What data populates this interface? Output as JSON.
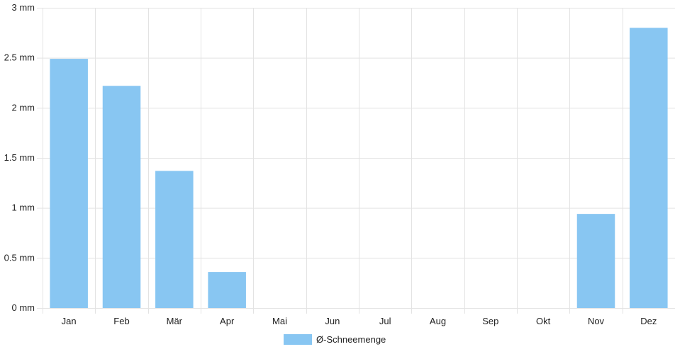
{
  "chart_data": {
    "type": "bar",
    "categories": [
      "Jan",
      "Feb",
      "Mär",
      "Apr",
      "Mai",
      "Jun",
      "Jul",
      "Aug",
      "Sep",
      "Okt",
      "Nov",
      "Dez"
    ],
    "series": [
      {
        "name": "Ø-Schneemenge",
        "values": [
          2.49,
          2.22,
          1.37,
          0.36,
          0,
          0,
          0,
          0,
          0,
          0,
          0.94,
          2.8
        ]
      }
    ],
    "ylim": [
      0,
      3
    ],
    "yticks": [
      0,
      0.5,
      1,
      1.5,
      2,
      2.5,
      3
    ],
    "yunit": "mm",
    "grid": true,
    "legend_position": "bottom",
    "bar_color": "#88c6f2",
    "grid_color": "#e3e3e3"
  }
}
